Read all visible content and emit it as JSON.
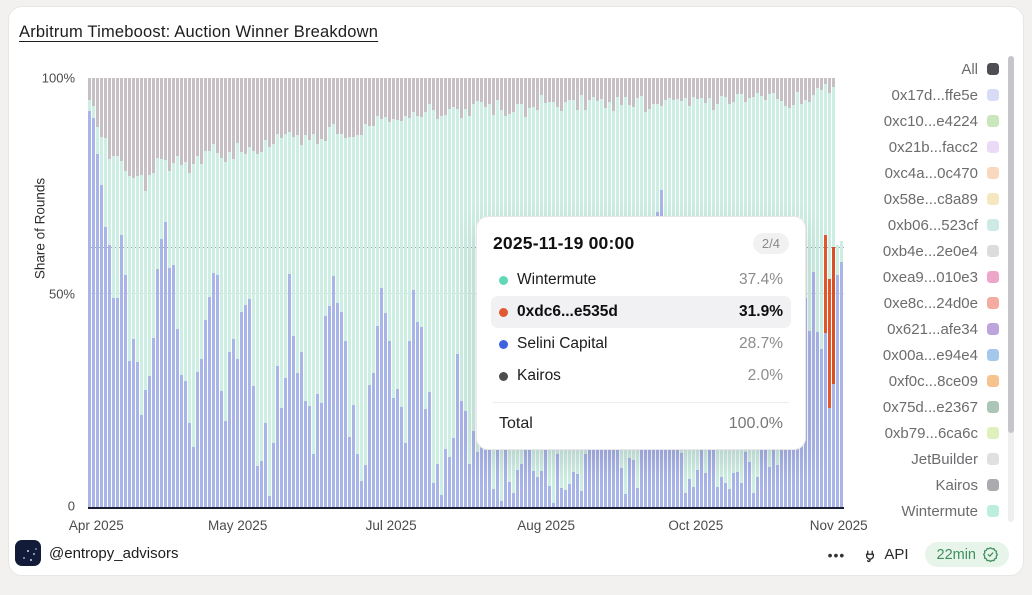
{
  "card": {
    "title": "Arbitrum Timeboost: Auction Winner Breakdown"
  },
  "chart_data": {
    "type": "bar",
    "stacked": true,
    "normalized_to_100_percent": true,
    "title": "Arbitrum Timeboost: Auction Winner Breakdown",
    "ylabel": "Share of Rounds",
    "ylim": [
      0,
      100
    ],
    "yticks": [
      "100%",
      "50%",
      "0"
    ],
    "xticklabels": [
      "Apr 2025",
      "May 2025",
      "Jul 2025",
      "Aug 2025",
      "Oct 2025",
      "Nov 2025"
    ],
    "grid": "50% horizontal gridline",
    "legend_position": "right",
    "colors": {
      "selini": "#a9b5e9",
      "dc6": "#e2582f",
      "wintermute": "#cdefe3",
      "gray": "#c6c0c4"
    },
    "samples_note": "values estimated from dense daily stacked bars; percentages per date",
    "samples": {
      "x": [
        "2025-04-01",
        "2025-04-04",
        "2025-04-08",
        "2025-04-11",
        "2025-04-15",
        "2025-04-18",
        "2025-04-22",
        "2025-04-25",
        "2025-04-29",
        "2025-05-02",
        "2025-05-06",
        "2025-05-09",
        "2025-05-13",
        "2025-05-16",
        "2025-05-20",
        "2025-05-23",
        "2025-05-27",
        "2025-05-30",
        "2025-06-03",
        "2025-06-06",
        "2025-06-10",
        "2025-06-13",
        "2025-06-17",
        "2025-06-20",
        "2025-06-24",
        "2025-06-27",
        "2025-07-01",
        "2025-07-04",
        "2025-07-08",
        "2025-07-11",
        "2025-07-15",
        "2025-07-18",
        "2025-07-22",
        "2025-07-25",
        "2025-07-29",
        "2025-08-01",
        "2025-08-05",
        "2025-08-08",
        "2025-08-12",
        "2025-08-15",
        "2025-08-19",
        "2025-08-22",
        "2025-08-26",
        "2025-08-29",
        "2025-09-02",
        "2025-09-05",
        "2025-09-09",
        "2025-09-12",
        "2025-09-16",
        "2025-09-19",
        "2025-09-23",
        "2025-09-26",
        "2025-09-30",
        "2025-10-03",
        "2025-10-07",
        "2025-10-10",
        "2025-10-14",
        "2025-10-17",
        "2025-10-21",
        "2025-10-24",
        "2025-10-28",
        "2025-10-31",
        "2025-11-04",
        "2025-11-07",
        "2025-11-11",
        "2025-11-14",
        "2025-11-18",
        "2025-11-19"
      ],
      "series": [
        {
          "name": "Selini Capital",
          "color": "#a9b5e9",
          "values": [
            92,
            80,
            45,
            62,
            30,
            20,
            50,
            65,
            35,
            15,
            42,
            58,
            28,
            38,
            50,
            18,
            10,
            30,
            48,
            25,
            15,
            38,
            52,
            25,
            12,
            20,
            45,
            28,
            12,
            50,
            22,
            8,
            15,
            32,
            10,
            14,
            6,
            12,
            5,
            9,
            6,
            11,
            7,
            5,
            9,
            28,
            55,
            18,
            7,
            14,
            38,
            72,
            30,
            10,
            6,
            18,
            9,
            5,
            13,
            7,
            22,
            11,
            28,
            42,
            52,
            45,
            33,
            28.7
          ]
        },
        {
          "name": "0xdc6...e535d",
          "color": "#e2582f",
          "values": [
            0,
            0,
            0,
            0,
            0,
            0,
            0,
            0,
            0,
            0,
            0,
            0,
            0,
            0,
            0,
            0,
            0,
            0,
            0,
            0,
            0,
            0,
            0,
            0,
            0,
            0,
            0,
            0,
            0,
            0,
            0,
            0,
            0,
            0,
            0,
            0,
            0,
            0,
            0,
            0,
            0,
            0,
            0,
            0,
            0,
            0,
            0,
            0,
            0,
            0,
            0,
            0,
            0,
            0,
            0,
            0,
            0,
            0,
            0,
            0,
            0,
            0,
            0,
            0,
            0,
            10,
            30,
            31.9
          ]
        },
        {
          "name": "Wintermute",
          "color": "#cdefe3",
          "values": [
            3,
            8,
            35,
            18,
            48,
            55,
            30,
            15,
            45,
            63,
            40,
            25,
            54,
            45,
            34,
            66,
            75,
            55,
            38,
            61,
            71,
            49,
            36,
            63,
            76,
            70,
            45,
            63,
            80,
            42,
            70,
            84,
            77,
            60,
            82,
            79,
            87,
            81,
            88,
            84,
            88,
            83,
            87,
            89,
            85,
            66,
            39,
            76,
            87,
            80,
            56,
            22,
            64,
            84,
            88,
            76,
            85,
            90,
            82,
            88,
            73,
            84,
            67,
            53,
            44,
            41,
            35,
            37.4
          ]
        },
        {
          "name": "Kairos & other builders (gray)",
          "color": "#c6c0c4",
          "values": [
            5,
            12,
            20,
            20,
            22,
            25,
            20,
            20,
            20,
            22,
            18,
            17,
            18,
            17,
            16,
            16,
            15,
            15,
            14,
            14,
            14,
            13,
            12,
            12,
            12,
            10,
            10,
            9,
            8,
            8,
            8,
            8,
            8,
            8,
            8,
            7,
            7,
            7,
            7,
            7,
            6,
            6,
            6,
            6,
            6,
            6,
            6,
            6,
            6,
            6,
            6,
            6,
            6,
            6,
            6,
            6,
            6,
            5,
            5,
            5,
            5,
            5,
            5,
            5,
            4,
            4,
            2,
            2
          ]
        }
      ]
    },
    "hover": {
      "date": "2025-11-19 00:00",
      "crosshair_percent": 60.6
    }
  },
  "tooltip": {
    "date": "2025-11-19 00:00",
    "page_badge": "2/4",
    "rows": [
      {
        "name": "Wintermute",
        "value": "37.4%",
        "color": "#5ed8b5",
        "highlighted": false
      },
      {
        "name": "0xdc6...e535d",
        "value": "31.9%",
        "color": "#e15932",
        "highlighted": true
      },
      {
        "name": "Selini Capital",
        "value": "28.7%",
        "color": "#3e63e0",
        "highlighted": false
      },
      {
        "name": "Kairos",
        "value": "2.0%",
        "color": "#4d4d4f",
        "highlighted": false
      }
    ],
    "total_label": "Total",
    "total_value": "100.0%"
  },
  "legend": {
    "items": [
      {
        "label": "All",
        "color": "#4e4e55"
      },
      {
        "label": "0x17d...ffe5e",
        "color": "#d7dbf6"
      },
      {
        "label": "0xc10...e4224",
        "color": "#c9e6bc"
      },
      {
        "label": "0x21b...facc2",
        "color": "#ebdaf7"
      },
      {
        "label": "0xc4a...0c470",
        "color": "#f8d8bf"
      },
      {
        "label": "0x58e...c8a89",
        "color": "#f5e7bf"
      },
      {
        "label": "0xb06...523cf",
        "color": "#cdeae5"
      },
      {
        "label": "0xb4e...2e0e4",
        "color": "#dcdcdc"
      },
      {
        "label": "0xea9...010e3",
        "color": "#eda6c8"
      },
      {
        "label": "0xe8c...24d0e",
        "color": "#f5aca0"
      },
      {
        "label": "0x621...afe34",
        "color": "#bda4dc"
      },
      {
        "label": "0x00a...e94e4",
        "color": "#a4c7ec"
      },
      {
        "label": "0xf0c...8ce09",
        "color": "#f6c28d"
      },
      {
        "label": "0x75d...e2367",
        "color": "#abc5b7"
      },
      {
        "label": "0xb79...6ca6c",
        "color": "#dff0bc"
      },
      {
        "label": "JetBuilder",
        "color": "#e0e0e0"
      },
      {
        "label": "Kairos",
        "color": "#ababaf"
      },
      {
        "label": "Wintermute",
        "color": "#bbeedb"
      }
    ]
  },
  "footer": {
    "handle": "@entropy_advisors",
    "menu_label": "•••",
    "api_label": "API",
    "refresh_label": "22min"
  }
}
